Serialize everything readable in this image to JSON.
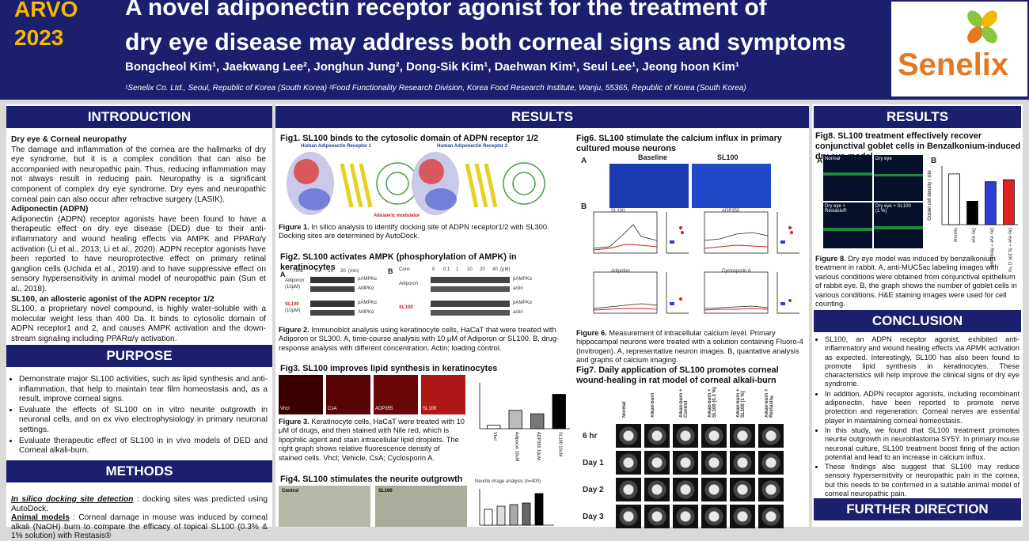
{
  "header": {
    "conference": [
      "ARVO",
      "2023"
    ],
    "title_lines": [
      "A novel adiponectin receptor agonist for the treatment of",
      "dry eye disease may address both corneal signs and symptoms"
    ],
    "authors": "Bongcheol Kim¹, Jaekwang Lee², Jonghun Jung², Dong-Sik Kim¹, Daehwan Kim¹, Seul Lee¹, Jeong hoon Kim¹",
    "affiliations": "¹Senelix Co. Ltd., Seoul, Republic of Korea (South Korea)   ²Food Functionality Research Division, Korea Food Research Institute, Wanju, 55365, Republic of Korea (South Korea)",
    "logo": "Senelix",
    "colors": {
      "navy": "#1b1f6e",
      "gold": "#f5b800",
      "orange": "#e87722",
      "green": "#8cc63f"
    }
  },
  "intro": {
    "title": "INTRODUCTION",
    "h1": "Dry eye & Corneal neuropathy",
    "p1": "The damage and inflammation of the cornea are the hallmarks of dry eye syndrome, but it is a complex condition that can also be accompanied with neuropathic pain. Thus, reducing inflammation may not always result in reducing pain. Neuropathy is a significant component of complex dry eye syndrome. Dry eyes and neuropathic corneal pain can also occur after refractive surgery (LASIK).",
    "h2": "Adiponectin (ADPN)",
    "p2": "Adiponectin (ADPN) receptor agonists have been found to have a therapeutic effect on dry eye disease (DED) due to their anti-inflammatory and wound healing effects via AMPK and PPARα/γ activation (Li et al., 2013; Li et al., 2020). ADPN receptor agonists have been reported to have neuroprotective effect on primary retinal ganglion cells (Uchida et al., 2019) and to have suppressive effect on sensory hypersensitivity in animal model of neuropathic pain (Sun et al., 2018).",
    "h3": "SL100, an allosteric agonist of the ADPN receptor 1/2",
    "p3": "SL100, a proprietary novel compound, is highly water-soluble with a molecular weight less than 400 Da. It binds to cytosolic domain of ADPN receptor1 and 2, and causes AMPK activation and the down-stream signaling including PPARα/γ activation."
  },
  "purpose": {
    "title": "PURPOSE",
    "items": [
      "Demonstrate major SL100 activities, such as lipid synthesis and anti-inflammation, that help to maintain tear film homeostasis and, as a result, improve corneal signs.",
      "Evaluate the effects of SL100 on in vitro neurite outgrowth in neuronal cells, and on ex vivo electrophysiology in primary neuronal settings.",
      "Evaluate therapeutic effect of SL100 in in vivo models of DED and Corneal alkali-burn."
    ]
  },
  "methods": {
    "title": "METHODS",
    "l1_label": "In silico docking site detection",
    "l1_text": " : docking sites was predicted using AutoDock.",
    "l2_label": "Animal models",
    "l2_text": " : Corneal damage in mouse was induced by corneal alkali (NaOH) burn to compare the efficacy of topical SL100 (0.3% & 1% solution) with Restasis®"
  },
  "results": {
    "title": "RESULTS",
    "fig1": {
      "title": "Fig1. SL100 binds to the cytosolic domain of ADPN receptor 1/2",
      "label_r1": "Human Adiponectin Receptor 1",
      "label_r2": "Human Adiponectin Receptor 2",
      "label_mod": "Allosteric modulator",
      "caption_a": "Figure 1.",
      "caption_b": " In silico analysis to identify docking site of ADPN receptor1/2 with SL300. Docking sites are determined by AutoDock."
    },
    "fig2": {
      "title": "Fig2. SL100 activates AMPK (phosphorylation of AMPK) in keratinocytes",
      "a": "A",
      "b": "B",
      "time_label": "Time",
      "times": [
        "0",
        "15",
        "30",
        "(min)"
      ],
      "conc_label": "Conc",
      "concs": [
        "0",
        "0.1",
        "1",
        "10",
        "20",
        "40",
        "(μM)"
      ],
      "adiporon": "Adiporon",
      "adiporon_dose": "(10μM)",
      "sl100": "SL100",
      "sl100_dose": "(10μM)",
      "bands": [
        "pAMPKα",
        "AMPKα",
        "pAMPKα",
        "AMPKα"
      ],
      "bands_b": [
        "pAMPKα",
        "actin",
        "pAMPKα",
        "actin"
      ],
      "caption_a": "Figure 2.",
      "caption_b": " Immunoblot analysis using keratinocyte cells, HaCaT that were treated with Adiporon or SL300. A, time-course analysis with 10 μM of Adiporon or SL100. B, drug-response analysis with different concentration. Actin; loading control."
    },
    "fig3": {
      "title": "Fig3. SL100 improves lipid synthesis in keratinocytes",
      "panels": [
        "Vhcl",
        "CsA",
        "ADP355",
        "SL100"
      ],
      "caption_a": "Figure 3.",
      "caption_b": " Keratinocyte cells, HaCaT were treated with 10 μM of drugs, and then stained with Nile red, which is lipophilic agent and stain intracellular lipid droplets. The right graph shows relative fluorescence density of stained cells. Vhcl; Vehicle, CsA; Cyclosporin A."
    },
    "fig4": {
      "title": "Fig4. SL100 stimulates the neurite outgrowth",
      "panels": [
        "Control",
        "SL100"
      ],
      "graph_title": "Neurite image analysis (n=400)"
    },
    "fig6": {
      "title": "Fig6. SL100 stimulate the calcium influx in primary cultured mouse neurons",
      "a": "A",
      "b": "B",
      "baseline": "Baseline",
      "sl100": "SL100",
      "plot_labels": [
        "SL100",
        "ADP355",
        "Adipofon",
        "Cyclosporin A"
      ],
      "caption_a": "Figure 6.",
      "caption_b": " Measurement of intracellular calcium level. Primary hippocampal neurons were treated with a solution containing Fluoro-4 (Invitrogen). A, representative neuron images. B, quantative analysis and graphs of calcium imaging."
    },
    "fig7": {
      "title": "Fig7. Daily application of SL100 promotes corneal wound-healing in rat model of corneal alkali-burn",
      "columns": [
        "Normal",
        "Alkali-burn",
        "Alkali-burn + Control",
        "Alkali-burn + SL100 (0.3 %)",
        "Alkali-burn + SL100 (1 %)",
        "Alkali-burn + Restasis®"
      ],
      "rows": [
        "6 hr",
        "Day 1",
        "Day 2",
        "Day 3"
      ]
    }
  },
  "results2": {
    "title": "RESULTS",
    "fig8": {
      "title": "Fig8. SL100 treatment effectively recover conjunctival goblet cells in Benzalkonium-induced dry eye model",
      "a": "A",
      "b": "B",
      "panels": [
        "Normal",
        "Dry eye",
        "Dry eye + Restasis®",
        "Dry eye + SL100 (1 %)"
      ],
      "ylabel": "Goblet cell density / site",
      "caption_a": "Figure 8.",
      "caption_b": " Dry eye model was induced by benzalkonium treatment in rabbit. A, anti-MUC5ac labeling images with various conditions were obtained from conjunctival epithelium of rabbit eye. B, the graph shows the number of goblet cells in various conditions. H&E staining images were used for cell counting."
    }
  },
  "conclusion": {
    "title": "CONCLUSION",
    "items": [
      "SL100, an ADPN receptor agonist, exhibited anti-inflammatory and wound healing effects via APMK activation as expected. Interestingly, SL100 has also been found to promote lipid synthesis in keratinocytes. These characteristics will help improve the clinical signs of dry eye syndrome.",
      "In addition, ADPN receptor agonists, including recombinant adiponectin, have been reported to promote nerve protection and regeneration. Corneal nerves are essential player in maintaining corneal homeostasis.",
      "In this study, we found that SL100 treatment promotes neurite outgrowth in neuroblastoma SY5Y. In primary mouse neuronal culture, SL100 treatment boost firing of the action potential and lead to an increase in calcium influx.",
      "These findings also suggest that SL100 may reduce sensory hypersensitivity or neuropathic pain in the cornea, but this needs to be confirmed in a suitable animal model of corneal neuropathic pain."
    ]
  },
  "further": {
    "title": "FURTHER DIRECTION"
  },
  "chart_data": [
    {
      "type": "bar",
      "categories": [
        "Vhcl",
        "Adiporon 10uM",
        "ADP355 10uM",
        "SL100 10uM"
      ],
      "values": [
        0.3,
        1.6,
        1.3,
        3.0
      ],
      "ylim": [
        0,
        4
      ],
      "colors": [
        "#ffffff",
        "#bbbbbb",
        "#777777",
        "#000000"
      ]
    },
    {
      "type": "bar",
      "categories": [
        "Normal",
        "Dry eye",
        "Dry eye + Restasis®",
        "Dry eye + SL100 (1 %)"
      ],
      "values": [
        130,
        60,
        110,
        115
      ],
      "ylim": [
        0,
        150
      ],
      "ylabel": "Goblet cell density / site",
      "colors": [
        "#ffffff",
        "#000000",
        "#2b3fd6",
        "#e22020"
      ]
    }
  ]
}
